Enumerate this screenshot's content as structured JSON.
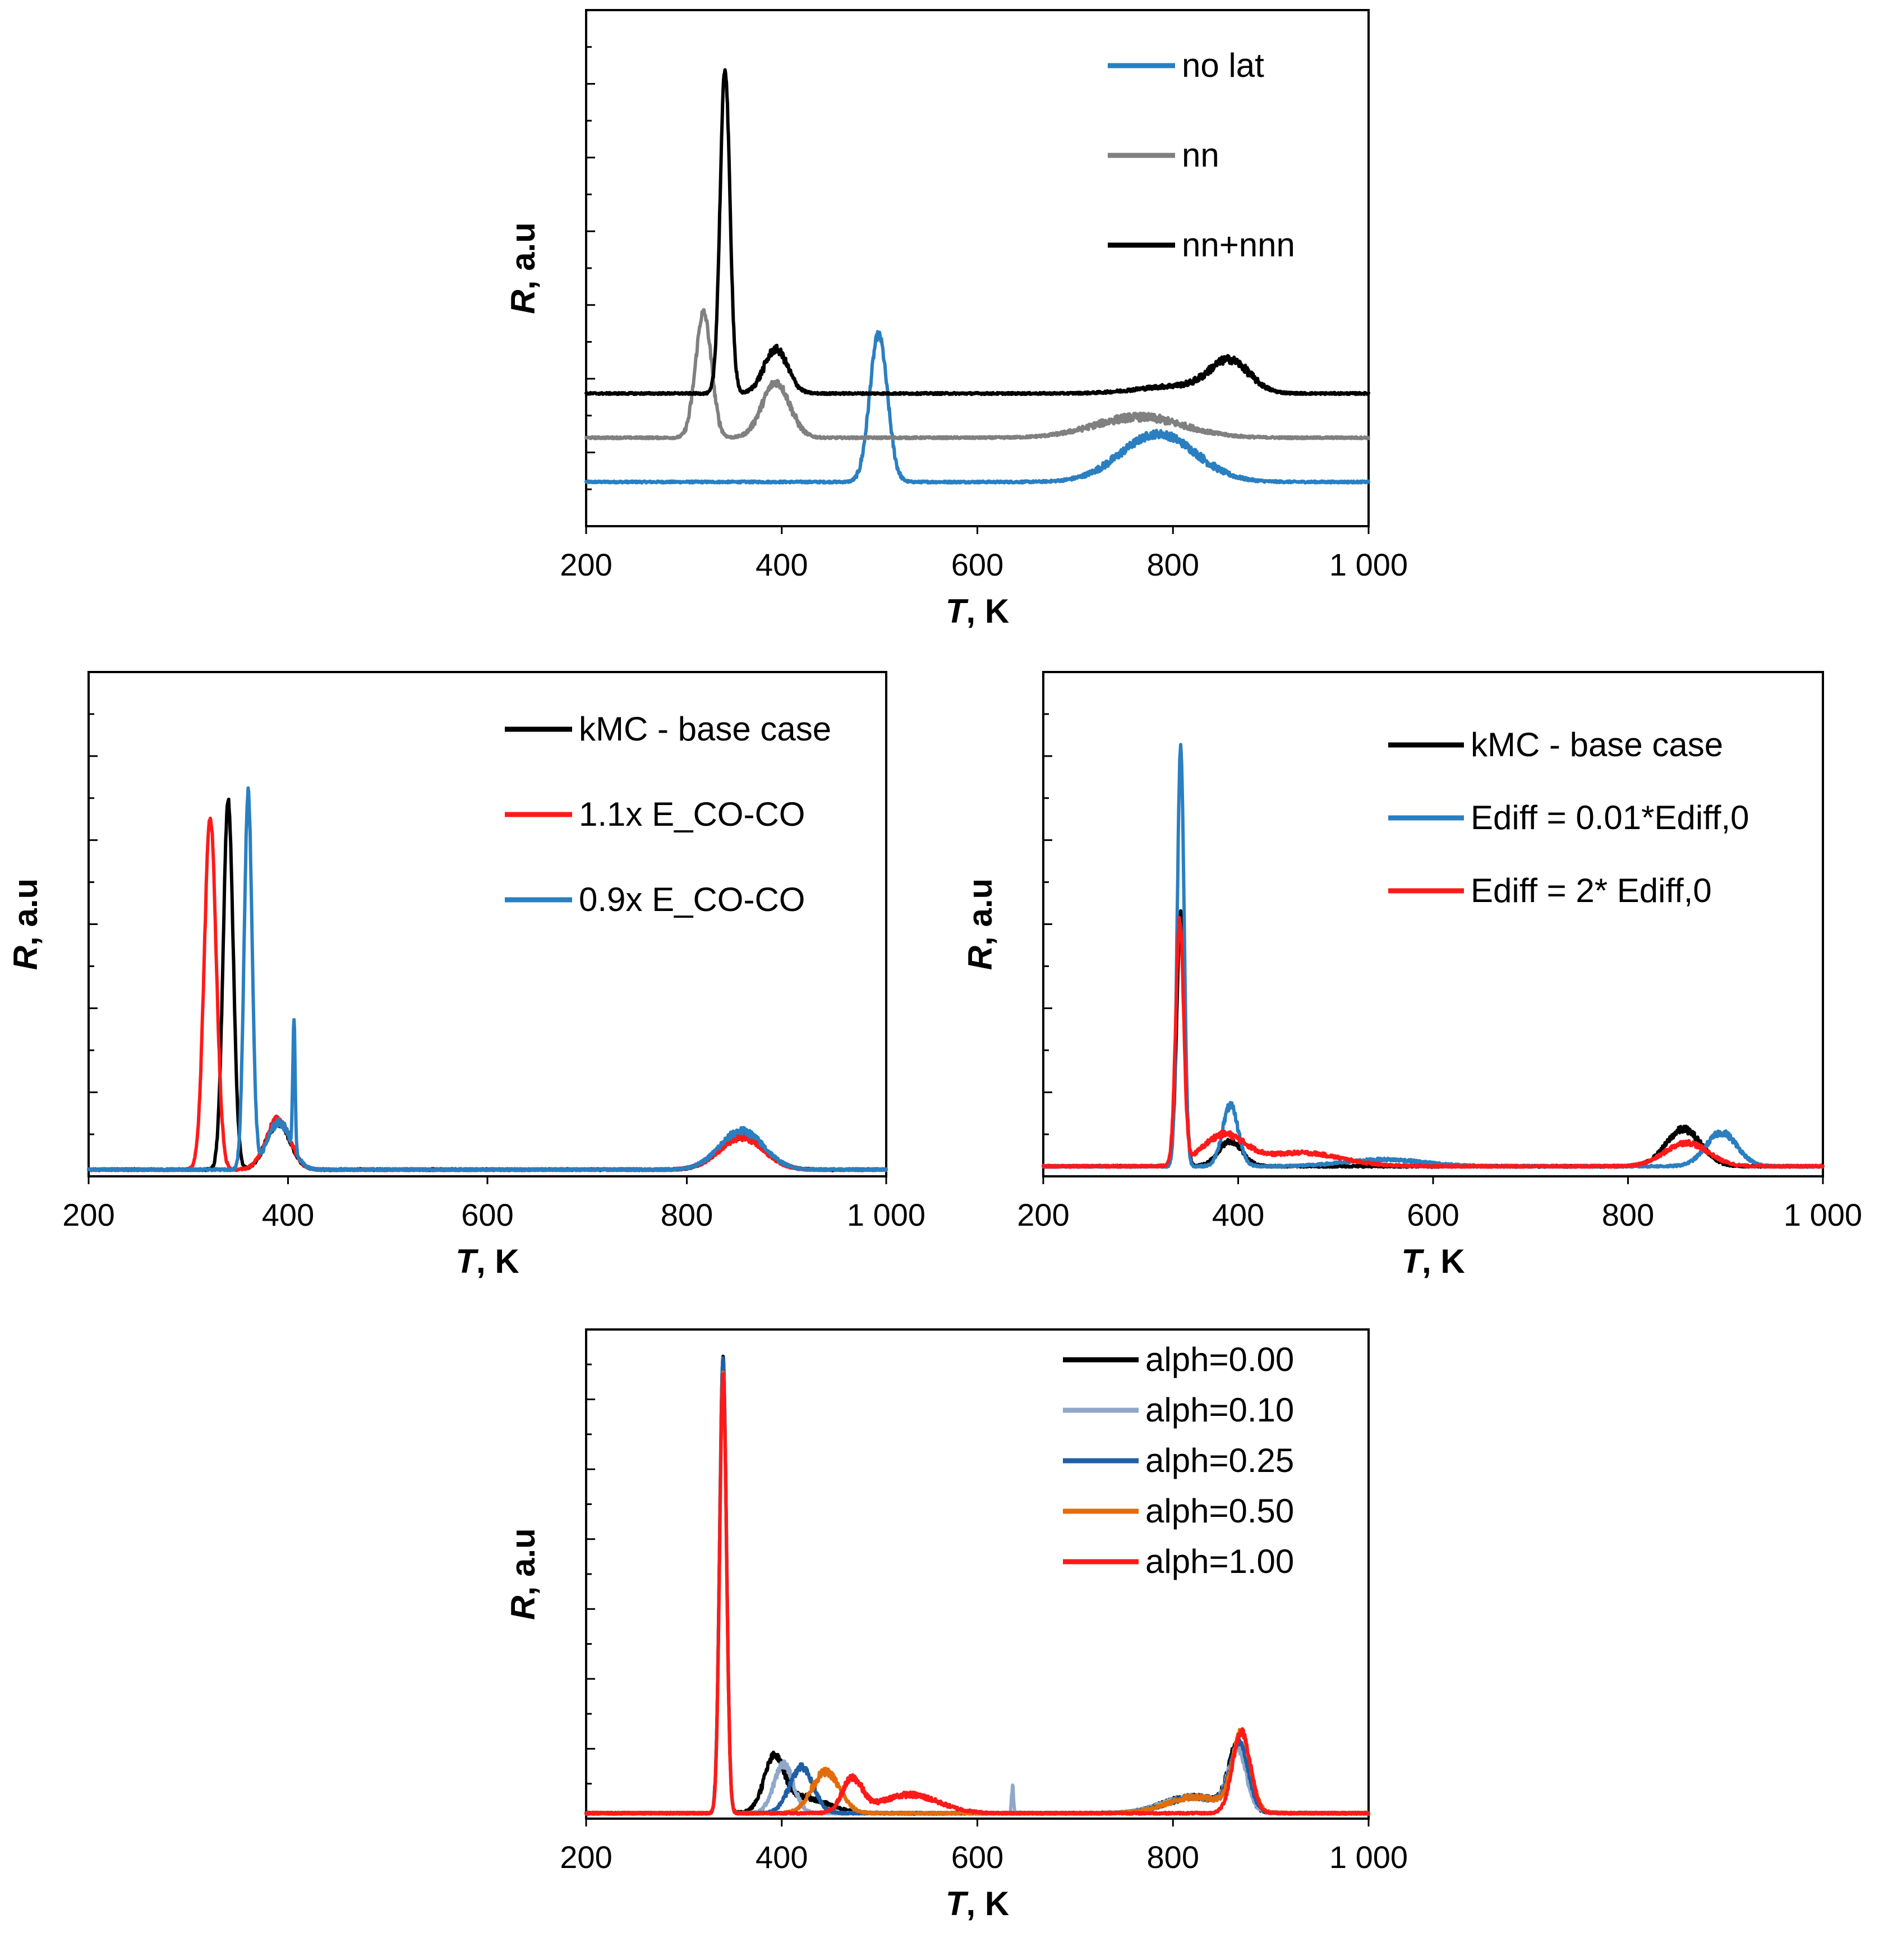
{
  "chart_data": [
    {
      "id": "top",
      "type": "line",
      "title": "",
      "xlabel_italic": "T",
      "xlabel_rest": ", K",
      "ylabel_italic": "R",
      "ylabel_rest": ", a.u",
      "xlim": [
        200,
        1000
      ],
      "xticks": [
        200,
        400,
        600,
        800,
        1000
      ],
      "xtick_labels": [
        "200",
        "400",
        "600",
        "800",
        "1 000"
      ],
      "ylim": [
        0,
        7
      ],
      "legend_position": "top-right",
      "series": [
        {
          "name": "no lat",
          "color": "#2a7fc1",
          "baseline": 0.6,
          "peaks": [
            {
              "x": 499,
              "h": 2.0,
              "w": 9
            },
            {
              "x": 785,
              "h": 0.65,
              "w": 38
            }
          ]
        },
        {
          "name": "nn",
          "color": "#808080",
          "baseline": 1.2,
          "peaks": [
            {
              "x": 320,
              "h": 1.7,
              "w": 8
            },
            {
              "x": 394,
              "h": 0.75,
              "w": 14
            },
            {
              "x": 765,
              "h": 0.28,
              "w": 45
            }
          ]
        },
        {
          "name": "nn+nnn",
          "color": "#000000",
          "baseline": 1.8,
          "peaks": [
            {
              "x": 342,
              "h": 4.4,
              "w": 5
            },
            {
              "x": 394,
              "h": 0.6,
              "w": 12
            },
            {
              "x": 858,
              "h": 0.42,
              "w": 20
            },
            {
              "x": 805,
              "h": 0.1,
              "w": 40
            }
          ]
        }
      ]
    },
    {
      "id": "middle-left",
      "type": "line",
      "title": "",
      "xlabel_italic": "T",
      "xlabel_rest": ", K",
      "ylabel_italic": "R",
      "ylabel_rest": ", a.u",
      "xlim": [
        200,
        1000
      ],
      "xticks": [
        200,
        400,
        600,
        800,
        1000
      ],
      "xtick_labels": [
        "200",
        "400",
        "600",
        "800",
        "1 000"
      ],
      "ylim": [
        0,
        3
      ],
      "legend_position": "top-right",
      "series": [
        {
          "name": "kMC - base case",
          "color": "#000000",
          "baseline": 0.04,
          "peaks": [
            {
              "x": 340,
              "h": 2.2,
              "w": 5
            },
            {
              "x": 390,
              "h": 0.28,
              "w": 12
            },
            {
              "x": 855,
              "h": 0.2,
              "w": 22
            }
          ]
        },
        {
          "name": "1.1x E_CO-CO",
          "color": "#ff1a1a",
          "baseline": 0.04,
          "peaks": [
            {
              "x": 322,
              "h": 2.1,
              "w": 6
            },
            {
              "x": 390,
              "h": 0.3,
              "w": 12
            },
            {
              "x": 855,
              "h": 0.19,
              "w": 22
            }
          ]
        },
        {
          "name": "0.9x E_CO-CO",
          "color": "#2a7fc1",
          "baseline": 0.04,
          "peaks": [
            {
              "x": 360,
              "h": 2.24,
              "w": 4
            },
            {
              "x": 391,
              "h": 0.28,
              "w": 12
            },
            {
              "x": 406,
              "h": 0.75,
              "w": 1.2
            },
            {
              "x": 855,
              "h": 0.23,
              "w": 22
            }
          ]
        }
      ]
    },
    {
      "id": "middle-right",
      "type": "line",
      "title": "",
      "xlabel_italic": "T",
      "xlabel_rest": ", K",
      "ylabel_italic": "R",
      "ylabel_rest": ", a.u",
      "xlim": [
        200,
        1000
      ],
      "xticks": [
        200,
        400,
        600,
        800,
        1000
      ],
      "xtick_labels": [
        "200",
        "400",
        "600",
        "800",
        "1 000"
      ],
      "ylim": [
        0,
        3
      ],
      "legend_position": "top-right",
      "series": [
        {
          "name": "kMC - base case",
          "color": "#000000",
          "baseline": 0.06,
          "peaks": [
            {
              "x": 341,
              "h": 1.5,
              "w": 4
            },
            {
              "x": 392,
              "h": 0.15,
              "w": 12
            },
            {
              "x": 857,
              "h": 0.22,
              "w": 18
            }
          ]
        },
        {
          "name": "Ediff = 0.01*Ediff,0",
          "color": "#2a7fc1",
          "baseline": 0.06,
          "peaks": [
            {
              "x": 341,
              "h": 2.5,
              "w": 3.5
            },
            {
              "x": 392,
              "h": 0.36,
              "w": 8
            },
            {
              "x": 896,
              "h": 0.2,
              "w": 16
            },
            {
              "x": 550,
              "h": 0.04,
              "w": 40
            }
          ]
        },
        {
          "name": "Ediff = 2* Ediff,0",
          "color": "#ff1a1a",
          "baseline": 0.06,
          "peaks": [
            {
              "x": 340,
              "h": 1.45,
              "w": 4
            },
            {
              "x": 385,
              "h": 0.18,
              "w": 22
            },
            {
              "x": 465,
              "h": 0.08,
              "w": 40
            },
            {
              "x": 860,
              "h": 0.14,
              "w": 22
            }
          ]
        }
      ]
    },
    {
      "id": "bottom",
      "type": "line",
      "title": "",
      "xlabel_italic": "T",
      "xlabel_rest": ", K",
      "ylabel_italic": "R",
      "ylabel_rest": ", a.u",
      "xlim": [
        200,
        1000
      ],
      "xticks": [
        200,
        400,
        600,
        800,
        1000
      ],
      "xtick_labels": [
        "200",
        "400",
        "600",
        "800",
        "1 000"
      ],
      "ylim": [
        0,
        4.5
      ],
      "legend_position": "top-right",
      "series": [
        {
          "name": "alph=0.00",
          "color": "#000000",
          "baseline": 0.05,
          "peaks": [
            {
              "x": 340,
              "h": 4.2,
              "w": 3.5
            },
            {
              "x": 392,
              "h": 0.45,
              "w": 10
            },
            {
              "x": 420,
              "h": 0.15,
              "w": 25
            },
            {
              "x": 866,
              "h": 0.6,
              "w": 9
            },
            {
              "x": 820,
              "h": 0.15,
              "w": 30
            }
          ]
        },
        {
          "name": "alph=0.10",
          "color": "#8fa8c8",
          "baseline": 0.05,
          "peaks": [
            {
              "x": 340,
              "h": 4.2,
              "w": 3.5
            },
            {
              "x": 402,
              "h": 0.45,
              "w": 10
            },
            {
              "x": 636,
              "h": 0.25,
              "w": 1
            },
            {
              "x": 866,
              "h": 0.55,
              "w": 9
            },
            {
              "x": 820,
              "h": 0.15,
              "w": 30
            }
          ]
        },
        {
          "name": "alph=0.25",
          "color": "#1f5fa6",
          "baseline": 0.05,
          "peaks": [
            {
              "x": 340,
              "h": 4.2,
              "w": 3.5
            },
            {
              "x": 420,
              "h": 0.42,
              "w": 12
            },
            {
              "x": 868,
              "h": 0.6,
              "w": 9
            },
            {
              "x": 825,
              "h": 0.15,
              "w": 30
            }
          ]
        },
        {
          "name": "alph=0.50",
          "color": "#e36c0a",
          "baseline": 0.05,
          "peaks": [
            {
              "x": 340,
              "h": 4.05,
              "w": 3.5
            },
            {
              "x": 445,
              "h": 0.38,
              "w": 14
            },
            {
              "x": 870,
              "h": 0.7,
              "w": 9
            },
            {
              "x": 825,
              "h": 0.15,
              "w": 30
            }
          ]
        },
        {
          "name": "alph=1.00",
          "color": "#ff1a1a",
          "baseline": 0.05,
          "peaks": [
            {
              "x": 340,
              "h": 4.05,
              "w": 3.5
            },
            {
              "x": 472,
              "h": 0.3,
              "w": 10
            },
            {
              "x": 530,
              "h": 0.17,
              "w": 30
            },
            {
              "x": 870,
              "h": 0.75,
              "w": 9
            }
          ]
        }
      ]
    }
  ]
}
